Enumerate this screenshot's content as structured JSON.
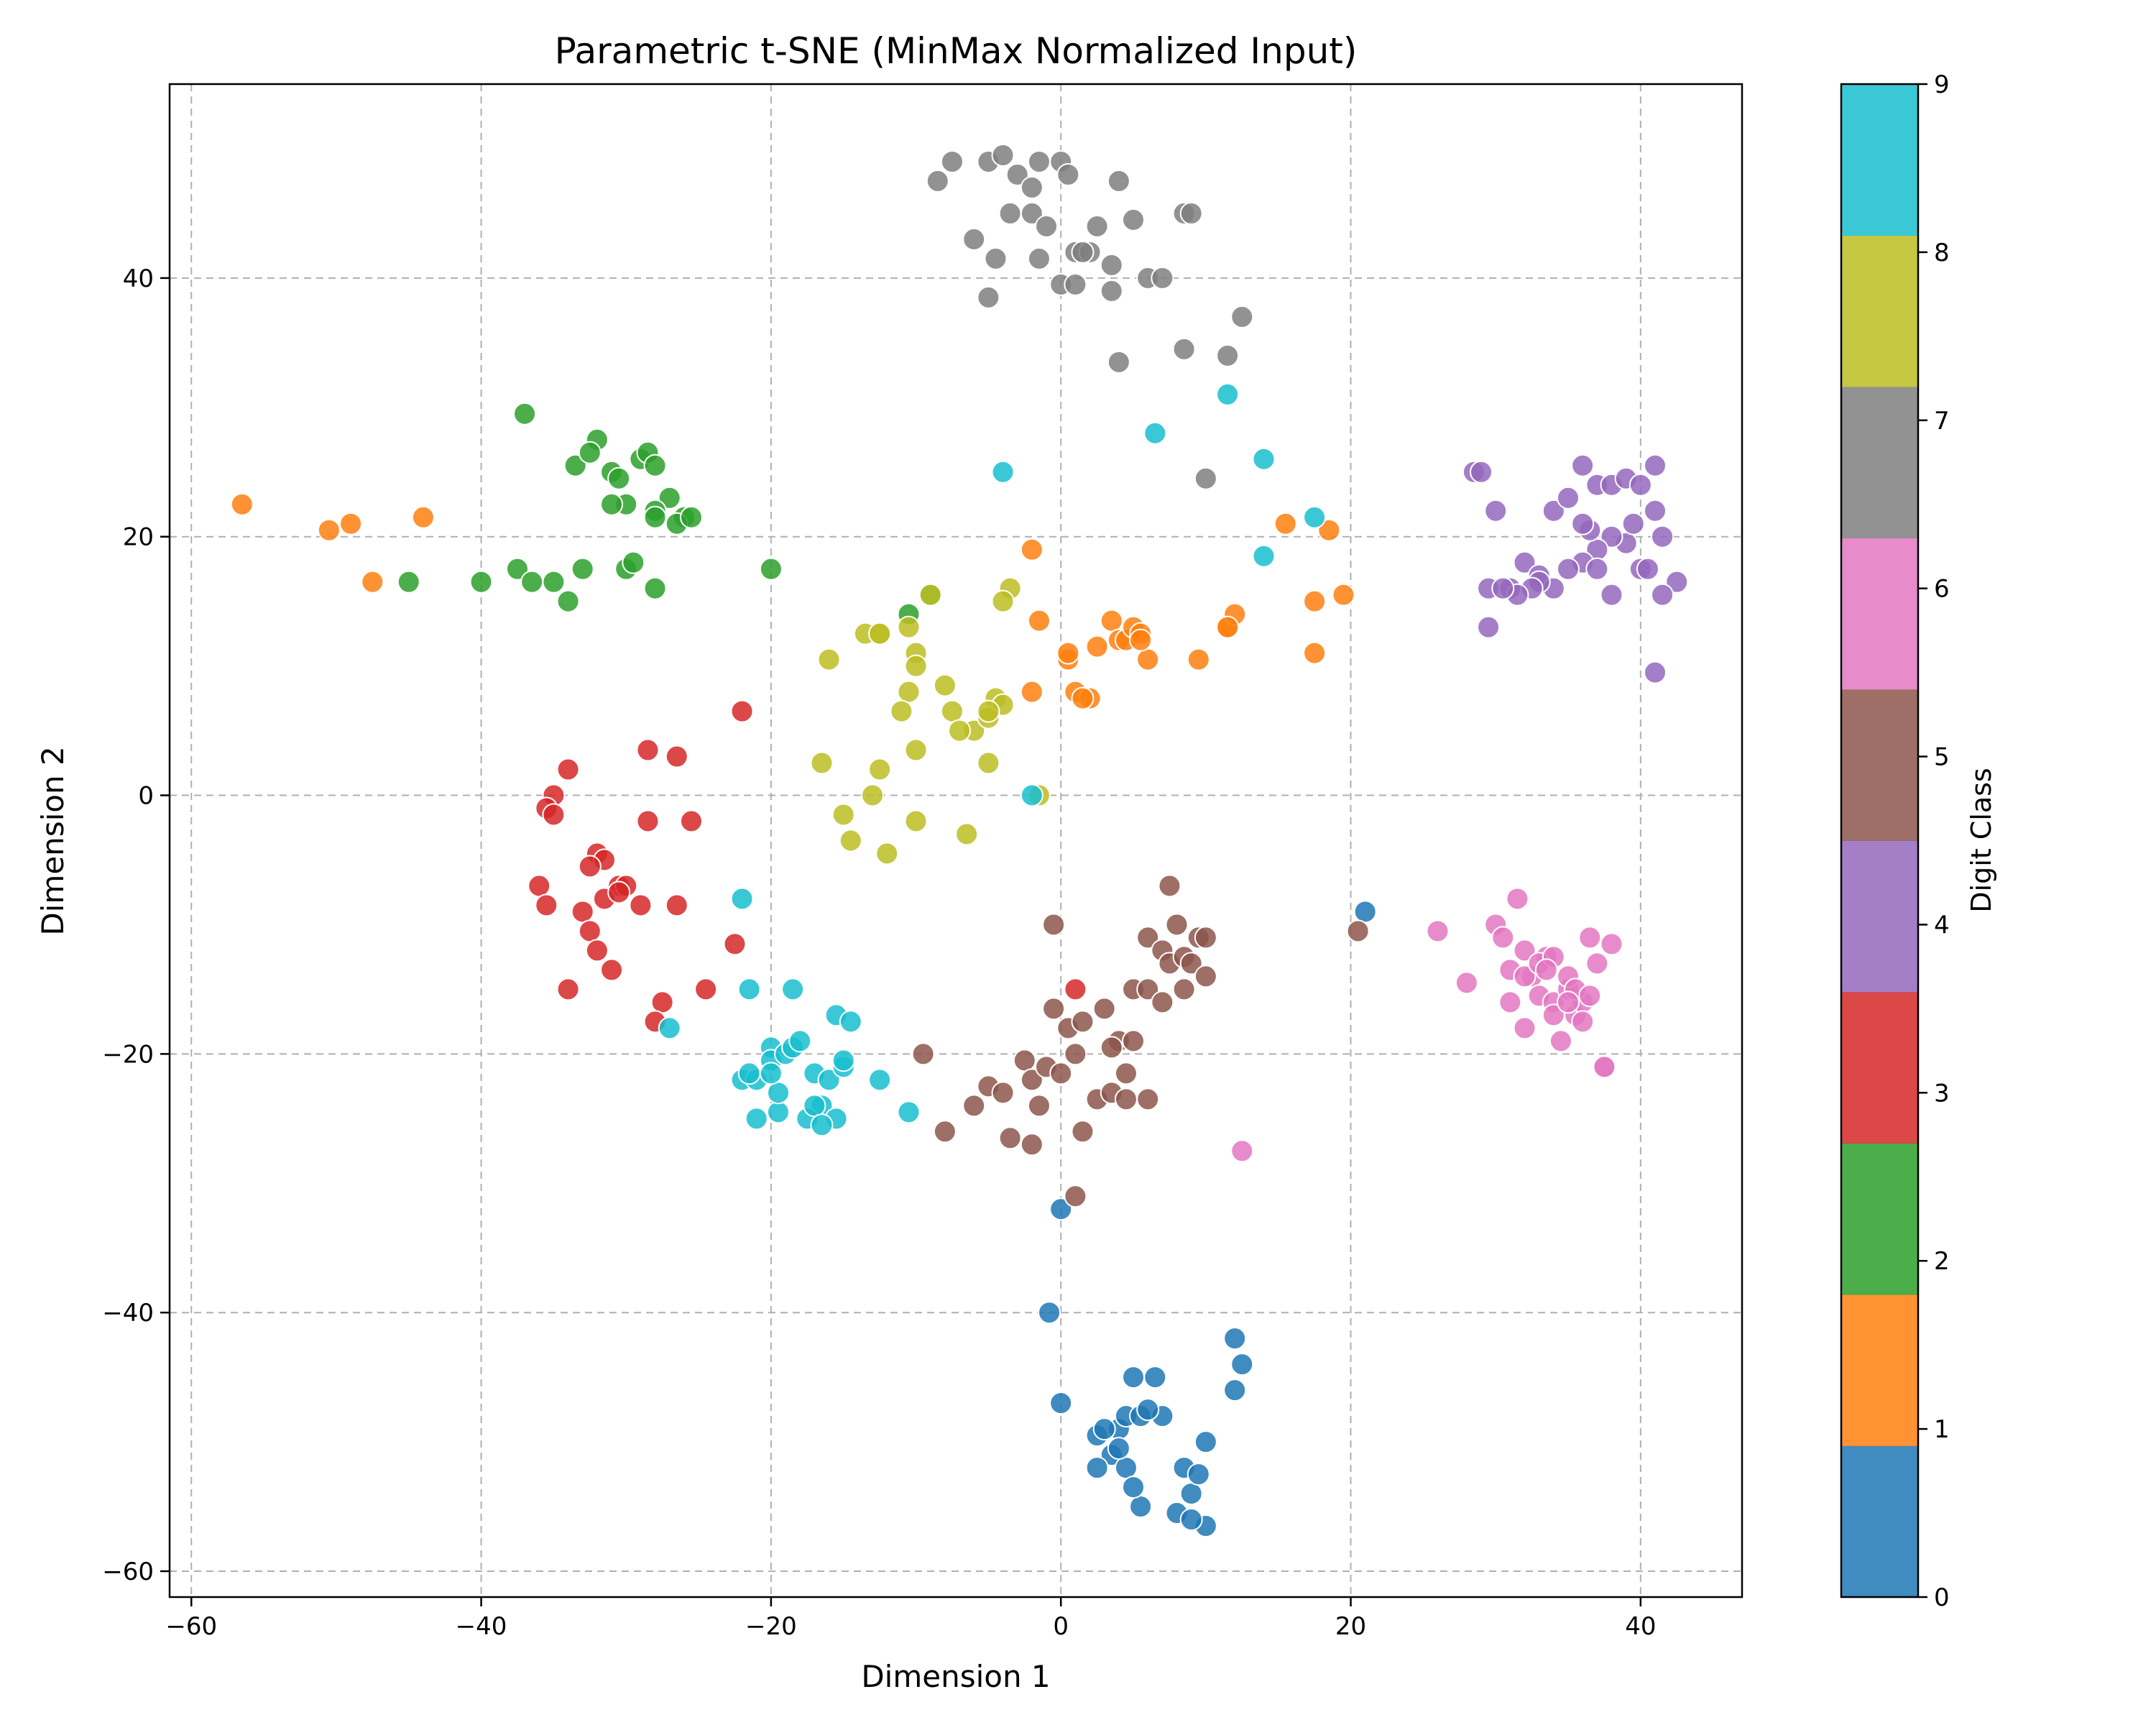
{
  "chart_data": {
    "type": "scatter",
    "title": "Parametric t-SNE (MinMax Normalized Input)",
    "xlabel": "Dimension 1",
    "ylabel": "Dimension 2",
    "xlim": [
      -61.5,
      47
    ],
    "ylim": [
      -62,
      55
    ],
    "xticks": [
      -60,
      -40,
      -20,
      0,
      20,
      40
    ],
    "yticks": [
      -60,
      -40,
      -20,
      0,
      20,
      40
    ],
    "grid": true,
    "colorbar": {
      "label": "Digit Class",
      "range": [
        0,
        9
      ],
      "ticks": [
        0,
        1,
        2,
        3,
        4,
        5,
        6,
        7,
        8,
        9
      ],
      "colors": [
        "#1f77b4",
        "#ff7f0e",
        "#2ca02c",
        "#d62728",
        "#9467bd",
        "#8c564b",
        "#e377c2",
        "#7f7f7f",
        "#bcbd22",
        "#17becf"
      ]
    },
    "series": [
      {
        "class": 0,
        "x": [
          0,
          -0.8,
          0,
          2.5,
          4,
          4.5,
          5,
          5.5,
          6.5,
          7,
          8.5,
          9,
          10,
          9.5,
          10,
          12,
          12.5,
          12,
          3.5,
          3,
          4.5,
          5.5,
          4,
          2.5,
          6,
          5,
          8,
          9,
          21
        ],
        "y": [
          -32,
          -40,
          -47,
          -49.5,
          -49,
          -48,
          -45,
          -48,
          -45,
          -48,
          -52,
          -54,
          -50,
          -52.5,
          -56.5,
          -42,
          -44,
          -46,
          -51,
          -49,
          -52,
          -55,
          -50.5,
          -52,
          -47.5,
          -53.5,
          -55.5,
          -56,
          -9
        ]
      },
      {
        "class": 1,
        "x": [
          -56.5,
          -50.5,
          -49,
          -47.5,
          -44,
          -2,
          -1.5,
          0.5,
          1,
          2,
          2.5,
          3.5,
          4,
          4.5,
          5,
          5.5,
          6,
          9.5,
          11.5,
          12,
          15.5,
          17.5,
          18.5,
          19.5,
          17.5,
          -2,
          0.5,
          1.5,
          5.5,
          11.5
        ],
        "y": [
          22.5,
          20.5,
          21,
          16.5,
          21.5,
          19,
          13.5,
          10.5,
          8,
          7.5,
          11.5,
          13.5,
          12,
          12,
          13,
          12.5,
          10.5,
          10.5,
          13,
          14,
          21,
          15,
          20.5,
          15.5,
          11,
          8,
          11,
          7.5,
          12,
          13
        ]
      },
      {
        "class": 2,
        "x": [
          -37,
          -33.5,
          -32,
          -31,
          -30,
          -29,
          -28.5,
          -28,
          -27,
          -26,
          -32.5,
          -30.5,
          -28,
          -26.5,
          -25.5,
          -45,
          -40,
          -37.5,
          -36.5,
          -35,
          -34,
          -33,
          -30,
          -28,
          -20,
          -10.5,
          -9,
          -29.5,
          -31,
          -28
        ],
        "y": [
          29.5,
          25.5,
          27.5,
          25,
          22.5,
          26,
          26.5,
          25.5,
          23,
          21.5,
          26.5,
          24.5,
          22,
          21,
          21.5,
          16.5,
          16.5,
          17.5,
          16.5,
          16.5,
          15,
          17.5,
          17.5,
          16,
          17.5,
          14,
          15.5,
          18,
          22.5,
          21.5
        ]
      },
      {
        "class": 3,
        "x": [
          -22,
          -34,
          -35,
          -35.5,
          -35,
          -28.5,
          -26.5,
          -25.5,
          -36,
          -35.5,
          -32,
          -31.5,
          -30.5,
          -30,
          -29,
          -28.5,
          -26.5,
          -33,
          -32.5,
          -32,
          -31,
          -27.5,
          -28,
          -24.5,
          -22.5,
          -34,
          -31.5,
          -30.5,
          -32.5,
          1
        ],
        "y": [
          6.5,
          2,
          0,
          -1,
          -1.5,
          3.5,
          3,
          -2,
          -7,
          -8.5,
          -4.5,
          -5,
          -7,
          -7,
          -8.5,
          -2,
          -8.5,
          -9,
          -10.5,
          -12,
          -13.5,
          -16,
          -17.5,
          -15,
          -11.5,
          -15,
          -8,
          -7.5,
          -5.5,
          -15
        ]
      },
      {
        "class": 4,
        "x": [
          28.5,
          29,
          30,
          29.5,
          31,
          32,
          33,
          34,
          35,
          36,
          37,
          38,
          39,
          40,
          41,
          41.5,
          40,
          39,
          38,
          37,
          36,
          35,
          34,
          33,
          32.5,
          31.5,
          30.5,
          29.5,
          37,
          38,
          36.5,
          36,
          39.5,
          40.5,
          41,
          42.5,
          41.5,
          41
        ],
        "y": [
          25,
          25,
          22,
          16,
          16,
          18,
          17,
          22,
          23,
          25.5,
          24,
          24,
          24.5,
          24,
          25.5,
          20,
          17.5,
          19.5,
          20,
          19,
          18,
          17.5,
          16,
          16.5,
          16,
          15.5,
          16,
          13,
          17.5,
          15.5,
          20.5,
          21,
          21,
          17.5,
          22,
          16.5,
          15.5,
          9.5
        ]
      },
      {
        "class": 5,
        "x": [
          7.5,
          6,
          8,
          9.5,
          10,
          7,
          7.5,
          8.5,
          9,
          10,
          8.5,
          -0.5,
          -0.5,
          0.5,
          1.5,
          3,
          4,
          5,
          6,
          7,
          3.5,
          5,
          4.5,
          -2.5,
          -5,
          -4,
          -2,
          -1,
          0,
          1,
          2.5,
          3.5,
          4.5,
          6,
          -3.5,
          -6,
          -8,
          -2,
          -1.5,
          1.5,
          1,
          20.5,
          -9.5
        ],
        "y": [
          -7,
          -11,
          -10,
          -11,
          -11,
          -12,
          -13,
          -12.5,
          -13,
          -14,
          -15,
          -10,
          -16.5,
          -18,
          -17.5,
          -16.5,
          -19,
          -15,
          -15,
          -16,
          -19.5,
          -19,
          -21.5,
          -20.5,
          -22.5,
          -23,
          -22,
          -21,
          -21.5,
          -20,
          -23.5,
          -23,
          -23.5,
          -23.5,
          -26.5,
          -24,
          -26,
          -27,
          -24,
          -26,
          -31,
          -10.5,
          -20
        ]
      },
      {
        "class": 6,
        "x": [
          26,
          28,
          30,
          30.5,
          31,
          31.5,
          32,
          32.5,
          33,
          33.5,
          34,
          34.5,
          35,
          35.5,
          36,
          36.5,
          37,
          37.5,
          38,
          31,
          32,
          33,
          34,
          35,
          35.5,
          36,
          36.5,
          33.5,
          32,
          34,
          35,
          37.5,
          12.5
        ],
        "y": [
          -10.5,
          -14.5,
          -10,
          -11,
          -16,
          -8,
          -12,
          -14,
          -15.5,
          -12.5,
          -16,
          -19,
          -15,
          -17,
          -16,
          -11,
          -13,
          -21,
          -11.5,
          -13.5,
          -14,
          -13,
          -12.5,
          -14,
          -15,
          -17.5,
          -15.5,
          -13.5,
          -18,
          -17,
          -16,
          -21,
          -27.5
        ]
      },
      {
        "class": 7,
        "x": [
          -8.5,
          -7.5,
          -5,
          -4,
          -3,
          -2,
          -1.5,
          0,
          0.5,
          4,
          -6,
          -3.5,
          -2,
          -1,
          0,
          1,
          2,
          2.5,
          3.5,
          5,
          6,
          7,
          8.5,
          9,
          -5,
          -4.5,
          -1.5,
          1,
          3.5,
          8.5,
          11.5,
          12.5,
          10,
          4,
          1.5
        ],
        "y": [
          47.5,
          49,
          49,
          49.5,
          48,
          47,
          49,
          49,
          48,
          47.5,
          43,
          45,
          45,
          44,
          39.5,
          42,
          42,
          44,
          41,
          44.5,
          40,
          40,
          45,
          45,
          38.5,
          41.5,
          41.5,
          39.5,
          39,
          34.5,
          34,
          37,
          24.5,
          33.5,
          42
        ]
      },
      {
        "class": 8,
        "x": [
          -16,
          -13.5,
          -12.5,
          -10.5,
          -10,
          -10,
          -10.5,
          -9,
          -8,
          -7.5,
          -6,
          -5,
          -4.5,
          -4,
          -3.5,
          -4,
          -16.5,
          -12.5,
          -10,
          -13,
          -15,
          -14.5,
          -12,
          -10,
          -6.5,
          -5,
          -1.5,
          -5,
          -7,
          -11,
          -12.5
        ],
        "y": [
          10.5,
          12.5,
          12.5,
          13,
          11,
          10,
          8,
          15.5,
          8.5,
          6.5,
          5,
          2.5,
          7.5,
          7,
          16,
          15,
          2.5,
          2,
          3.5,
          0,
          -1.5,
          -3.5,
          -4.5,
          -2,
          -3,
          6,
          0,
          6.5,
          5,
          6.5,
          12.5
        ]
      },
      {
        "class": 9,
        "x": [
          -4,
          6.5,
          11.5,
          14,
          14,
          17.5,
          -2,
          -22,
          -27,
          -21.5,
          -20,
          -22,
          -21,
          -20,
          -19,
          -18.5,
          -18,
          -17,
          -16,
          -15.5,
          -15,
          -16.5,
          -17.5,
          -19.5,
          -21,
          -14.5,
          -15.5,
          -12.5,
          -10.5,
          -18.5,
          -19.5,
          -20,
          -21.5,
          -15,
          -17,
          -16.5
        ],
        "y": [
          25,
          28,
          31,
          26,
          18.5,
          21.5,
          0,
          -8,
          -18,
          -15,
          -19.5,
          -22,
          -22,
          -20.5,
          -20,
          -19.5,
          -19,
          -21.5,
          -22,
          -17,
          -21,
          -24,
          -25,
          -24.5,
          -25,
          -17.5,
          -25,
          -22,
          -24.5,
          -15,
          -23,
          -21.5,
          -21.5,
          -20.5,
          -24,
          -25.5
        ]
      }
    ]
  }
}
